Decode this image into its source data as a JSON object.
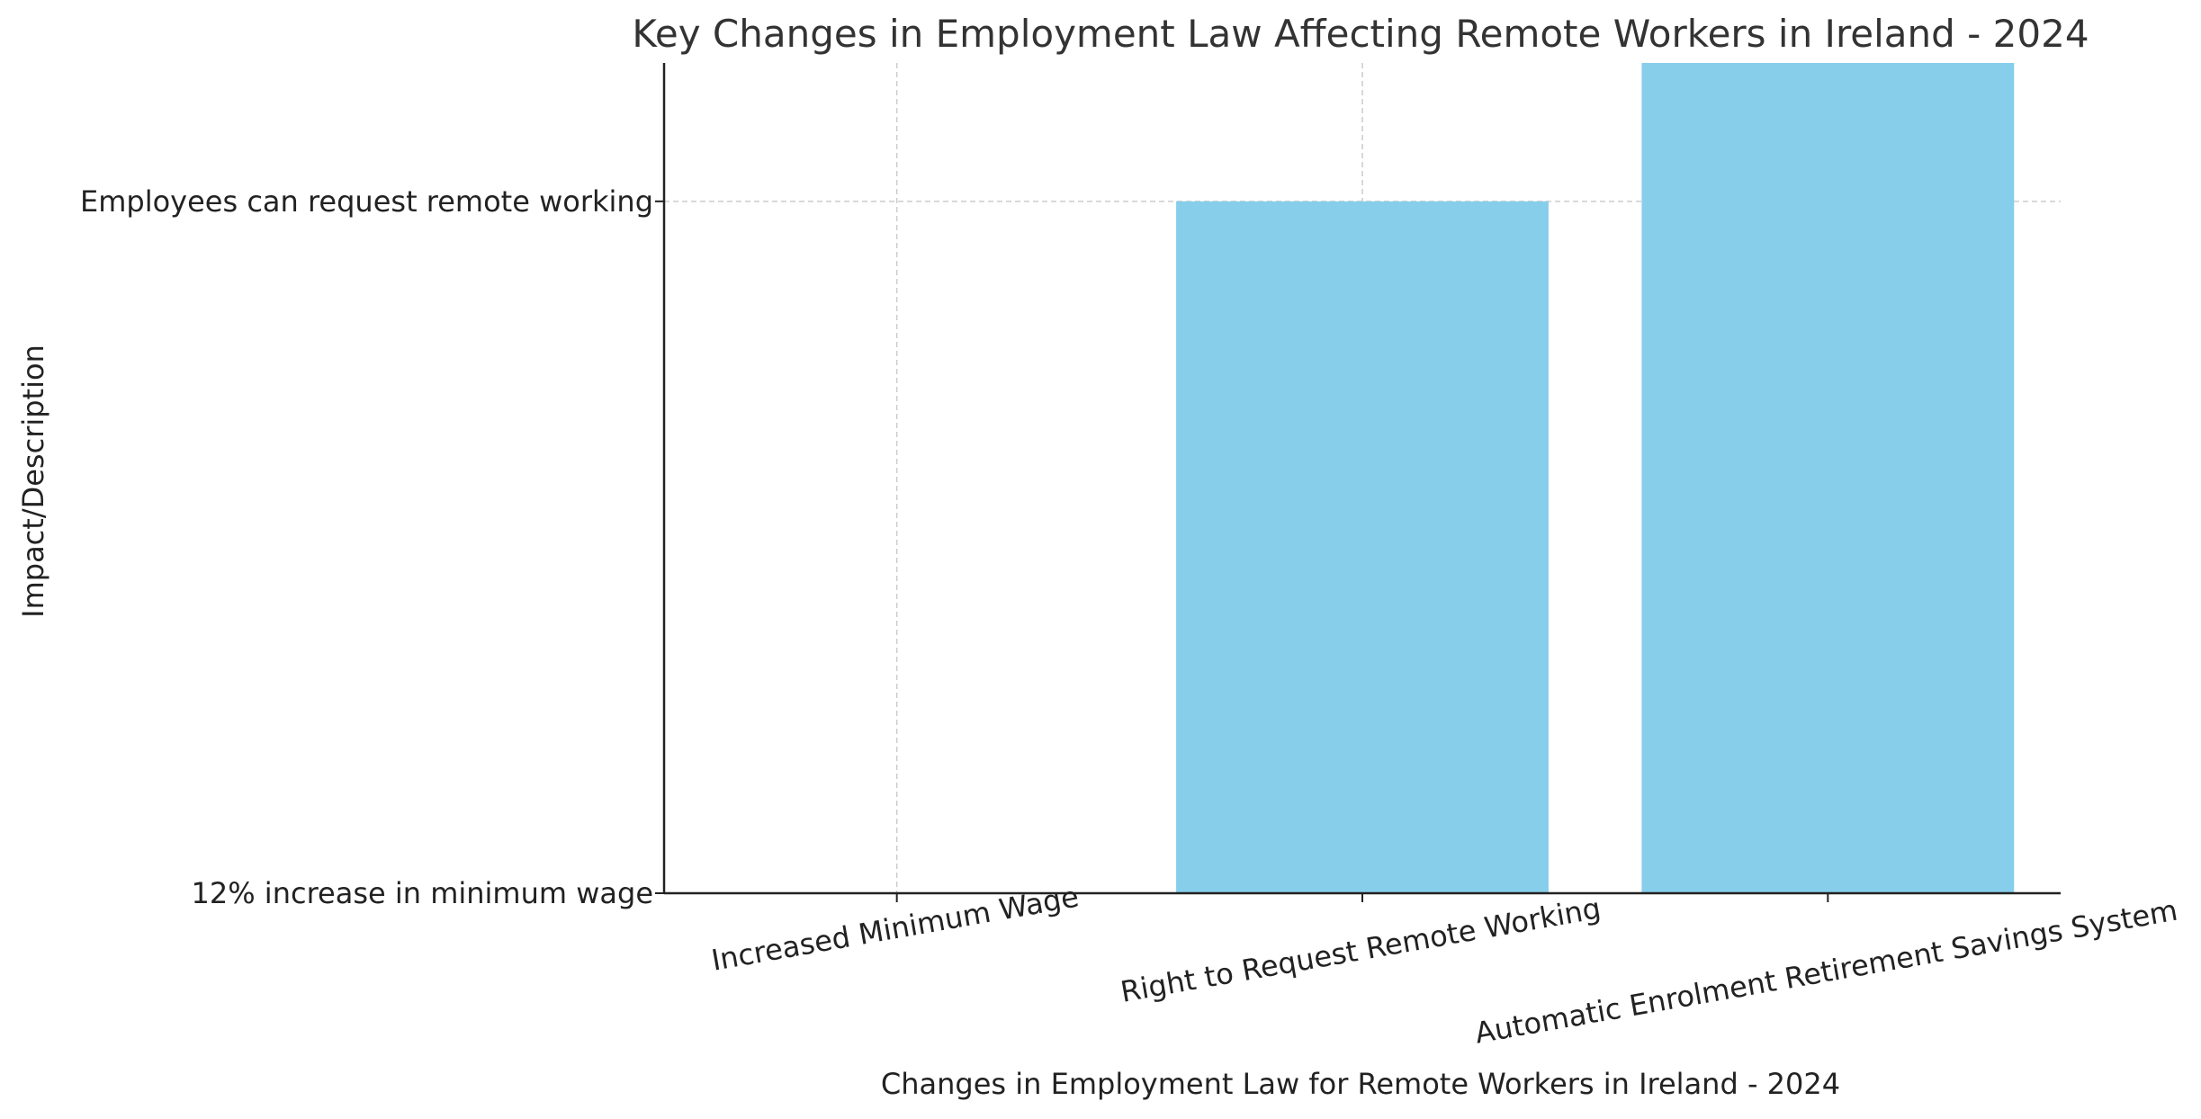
{
  "chart_data": {
    "type": "bar",
    "title": "Key Changes in Employment Law Affecting Remote Workers in Ireland - 2024",
    "xlabel": "Changes in Employment Law for Remote Workers in Ireland - 2024",
    "ylabel": "Impact/Description",
    "categories": [
      "Increased Minimum Wage",
      "Right to Request Remote Working",
      "Automatic Enrolment Retirement Savings System"
    ],
    "values": [
      0,
      1,
      1.2
    ],
    "ylim": [
      0,
      1.2
    ],
    "yticks": [
      {
        "value": 0,
        "label": "12% increase in minimum wage"
      },
      {
        "value": 1,
        "label": "Employees can request remote working"
      }
    ],
    "grid": true,
    "bar_color": "#87CEEB",
    "axis_color": "#222222",
    "grid_color": "#cccccc",
    "title_color": "#333333"
  }
}
